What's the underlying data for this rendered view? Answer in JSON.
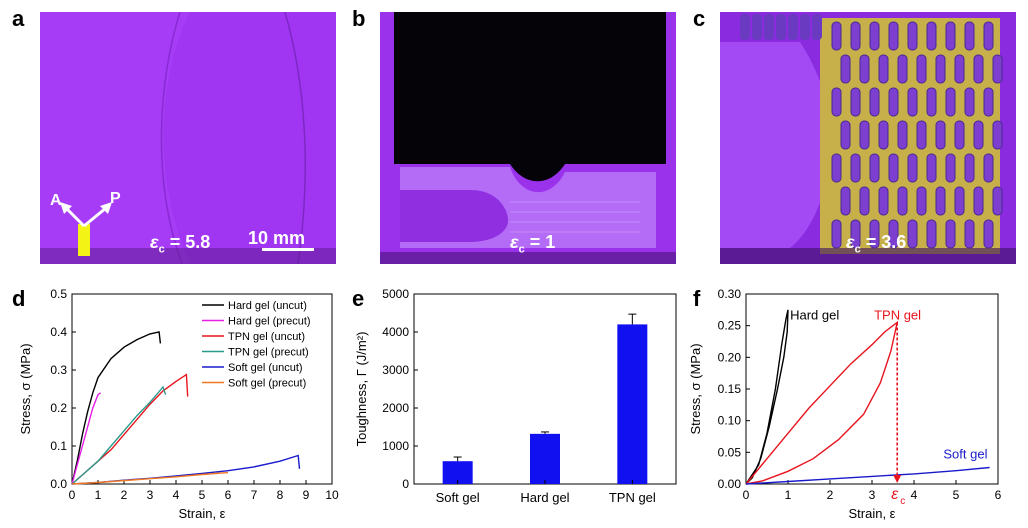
{
  "panels": {
    "a": {
      "letter": "a",
      "strain_label": "ε",
      "strain_sub": "c",
      "strain_value": " = 5.8",
      "scalebar": "10 mm",
      "arrow_a": "A",
      "arrow_p": "P"
    },
    "b": {
      "letter": "b",
      "strain_label": "ε",
      "strain_sub": "c",
      "strain_value": " = 1"
    },
    "c": {
      "letter": "c",
      "strain_label": "ε",
      "strain_sub": "c",
      "strain_value": " = 3.6"
    },
    "d": {
      "letter": "d"
    },
    "e": {
      "letter": "e"
    },
    "f": {
      "letter": "f"
    }
  },
  "colors": {
    "photo_bg": "#a335f5",
    "hard": "#000000",
    "hard_precut": "#e61ee6",
    "tpn": "#e8141e",
    "tpn_precut": "#2a9a8a",
    "soft": "#1a1acc",
    "soft_precut": "#f07820",
    "bar": "#1010f0"
  },
  "chart_data": [
    {
      "type": "line",
      "xlabel": "Strain, ε",
      "ylabel": "Stress, σ (MPa)",
      "xlim": [
        0,
        10
      ],
      "ylim": [
        0,
        0.5
      ],
      "xticks": [
        "0",
        "1",
        "2",
        "3",
        "4",
        "5",
        "6",
        "7",
        "8",
        "9",
        "10"
      ],
      "yticks": [
        "0.0",
        "0.1",
        "0.2",
        "0.3",
        "0.4",
        "0.5"
      ],
      "legend": "top-right",
      "series": [
        {
          "name": "Hard gel (uncut)",
          "color": "#000000",
          "x": [
            0,
            0.2,
            0.4,
            0.6,
            0.8,
            1.0,
            1.5,
            2.0,
            2.5,
            3.0,
            3.35,
            3.4
          ],
          "y": [
            0,
            0.06,
            0.13,
            0.19,
            0.24,
            0.28,
            0.33,
            0.36,
            0.38,
            0.395,
            0.4,
            0.37
          ]
        },
        {
          "name": "Hard gel (precut)",
          "color": "#e61ee6",
          "x": [
            0,
            0.2,
            0.4,
            0.6,
            0.8,
            1.0,
            1.1
          ],
          "y": [
            0,
            0.05,
            0.1,
            0.15,
            0.2,
            0.235,
            0.24
          ]
        },
        {
          "name": "TPN gel (uncut)",
          "color": "#e8141e",
          "x": [
            0,
            0.5,
            1.0,
            1.5,
            2.0,
            2.5,
            3.0,
            3.5,
            4.0,
            4.4,
            4.45
          ],
          "y": [
            0,
            0.03,
            0.06,
            0.09,
            0.13,
            0.17,
            0.21,
            0.245,
            0.27,
            0.288,
            0.23
          ]
        },
        {
          "name": "TPN gel (precut)",
          "color": "#2a9a8a",
          "x": [
            0,
            0.5,
            1.0,
            1.5,
            2.0,
            2.5,
            3.0,
            3.5,
            3.6
          ],
          "y": [
            0,
            0.03,
            0.06,
            0.1,
            0.14,
            0.18,
            0.215,
            0.255,
            0.235
          ]
        },
        {
          "name": "Soft gel (uncut)",
          "color": "#1a1acc",
          "x": [
            0,
            1,
            2,
            3,
            4,
            5,
            6,
            7,
            8,
            8.7,
            8.75
          ],
          "y": [
            0,
            0.004,
            0.01,
            0.015,
            0.021,
            0.028,
            0.035,
            0.045,
            0.06,
            0.075,
            0.04
          ]
        },
        {
          "name": "Soft gel (precut)",
          "color": "#f07820",
          "x": [
            0,
            1,
            2,
            3,
            4,
            5,
            6
          ],
          "y": [
            0,
            0.004,
            0.009,
            0.014,
            0.019,
            0.025,
            0.03
          ]
        }
      ]
    },
    {
      "type": "bar",
      "xlabel": "",
      "ylabel": "Toughness, Γ (J/m²)",
      "categories": [
        "Soft gel",
        "Hard gel",
        "TPN gel"
      ],
      "values": [
        600,
        1320,
        4200
      ],
      "errors": [
        110,
        50,
        270
      ],
      "ylim": [
        0,
        5000
      ],
      "yticks": [
        "0",
        "1000",
        "2000",
        "3000",
        "4000",
        "5000"
      ]
    },
    {
      "type": "line",
      "xlabel": "Strain, ε",
      "ylabel": "Stress, σ (MPa)",
      "xlim": [
        0,
        6
      ],
      "ylim": [
        0,
        0.3
      ],
      "xticks": [
        "0",
        "1",
        "2",
        "3",
        "4",
        "5",
        "6"
      ],
      "yticks": [
        "0.00",
        "0.05",
        "0.10",
        "0.15",
        "0.20",
        "0.25",
        "0.30"
      ],
      "annotation": "ε",
      "annotation_sub": "c",
      "annotation_x": 3.6,
      "series": [
        {
          "name": "Hard gel",
          "color": "#000000",
          "x": [
            0,
            0.3,
            0.5,
            0.7,
            0.85,
            0.95,
            1.0,
            0.98,
            0.9,
            0.75,
            0.55,
            0.35,
            0.15,
            0
          ],
          "y": [
            0,
            0.03,
            0.08,
            0.15,
            0.22,
            0.26,
            0.275,
            0.24,
            0.2,
            0.15,
            0.09,
            0.04,
            0.01,
            0
          ]
        },
        {
          "name": "TPN gel",
          "color": "#e8141e",
          "x": [
            0,
            0.5,
            1.0,
            1.5,
            2.0,
            2.5,
            3.0,
            3.3,
            3.6,
            3.45,
            3.2,
            2.8,
            2.2,
            1.6,
            1.0,
            0.4,
            0
          ],
          "y": [
            0,
            0.04,
            0.08,
            0.12,
            0.155,
            0.19,
            0.22,
            0.24,
            0.255,
            0.21,
            0.16,
            0.11,
            0.07,
            0.04,
            0.02,
            0.005,
            0
          ]
        },
        {
          "name": "Soft gel",
          "color": "#1a1acc",
          "x": [
            0,
            1,
            2,
            3,
            4,
            5,
            5.8
          ],
          "y": [
            0,
            0.004,
            0.008,
            0.012,
            0.016,
            0.021,
            0.026
          ]
        }
      ]
    }
  ]
}
